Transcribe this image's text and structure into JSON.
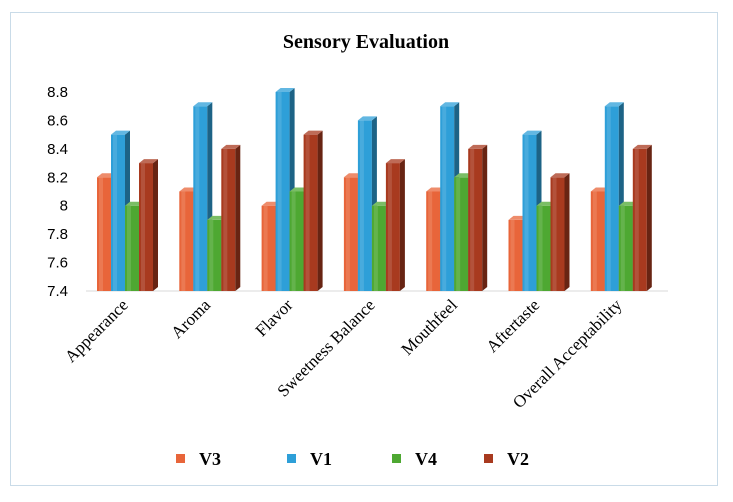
{
  "chart_data": {
    "type": "bar",
    "title": "Sensory Evaluation",
    "categories": [
      "Appearance",
      "Aroma",
      "Flavor",
      "Sweetness Balance",
      "Mouthfeel",
      "Aftertaste",
      "Overall Acceptability"
    ],
    "series": [
      {
        "name": "V3",
        "color": "#e8653a",
        "values": [
          8.2,
          8.1,
          8.0,
          8.2,
          8.1,
          7.9,
          8.1
        ]
      },
      {
        "name": "V1",
        "color": "#2e9fd8",
        "values": [
          8.5,
          8.7,
          8.8,
          8.6,
          8.7,
          8.5,
          8.7
        ]
      },
      {
        "name": "V4",
        "color": "#4ea832",
        "values": [
          8.0,
          7.9,
          8.1,
          8.0,
          8.2,
          8.0,
          8.0
        ]
      },
      {
        "name": "V2",
        "color": "#a83a1f",
        "values": [
          8.3,
          8.4,
          8.5,
          8.3,
          8.4,
          8.2,
          8.4
        ]
      }
    ],
    "ylim": [
      7.4,
      8.8
    ],
    "yticks": [
      "7.4",
      "7.6",
      "7.8",
      "8",
      "8.2",
      "8.4",
      "8.6",
      "8.8"
    ],
    "grid": false,
    "legend_position": "bottom",
    "style": "3d-bars"
  }
}
